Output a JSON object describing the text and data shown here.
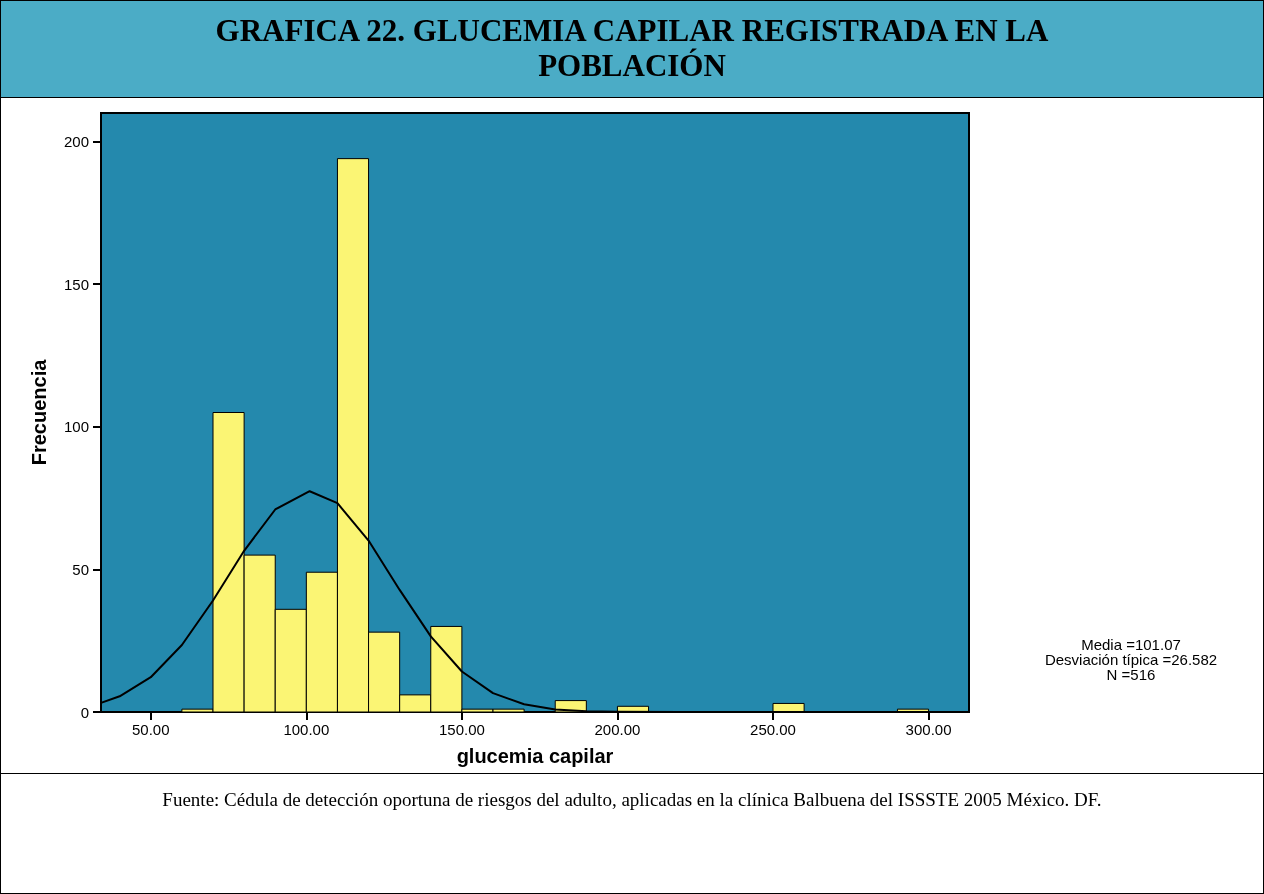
{
  "chart_data": {
    "type": "histogram",
    "title": "GRAFICA 22. GLUCEMIA CAPILAR REGISTRADA EN LA POBLACIÓN",
    "xlabel": "glucemia capilar",
    "ylabel": "Frecuencia",
    "bins": [
      60,
      70,
      80,
      90,
      100,
      110,
      120,
      130,
      140,
      150,
      160,
      170,
      180,
      190,
      200,
      210,
      220,
      230,
      240,
      250,
      260,
      270,
      280,
      290,
      300
    ],
    "series": [
      {
        "type": "histogram",
        "color": "#fbf574",
        "values": [
          1,
          105,
          55,
          36,
          49,
          194,
          28,
          6,
          30,
          1,
          1,
          0,
          4,
          0,
          2,
          0,
          0,
          0,
          0,
          3,
          0,
          0,
          0,
          1
        ]
      },
      {
        "type": "line",
        "color": "#000000",
        "x": [
          34,
          40,
          50,
          60,
          70,
          80,
          90,
          101.07,
          110,
          120,
          130,
          140,
          150,
          160,
          170,
          180,
          190,
          200,
          220,
          250,
          313
        ],
        "values": [
          3.2,
          5.5,
          12.2,
          23.5,
          39.1,
          56.5,
          71.0,
          77.4,
          73.2,
          60.1,
          42.8,
          26.5,
          14.2,
          6.6,
          2.7,
          0.9,
          0.3,
          0.1,
          0,
          0,
          0
        ]
      }
    ],
    "xlim": [
      34,
      313
    ],
    "xticks": [
      {
        "value": 50,
        "label": "50.00"
      },
      {
        "value": 100,
        "label": "100.00"
      },
      {
        "value": 150,
        "label": "150.00"
      },
      {
        "value": 200,
        "label": "200.00"
      },
      {
        "value": 250,
        "label": "250.00"
      },
      {
        "value": 300,
        "label": "300.00"
      }
    ],
    "ylim": [
      0,
      210
    ],
    "yticks": [
      0,
      50,
      100,
      150,
      200
    ],
    "annotations": [
      "Media =101.07",
      "Desviación típica =26.582",
      "N =516",
      "Fuente: Cédula de detección oportuna de riesgos del adulto, aplicadas en la clínica Balbuena del ISSSTE 2005 México. DF."
    ]
  }
}
